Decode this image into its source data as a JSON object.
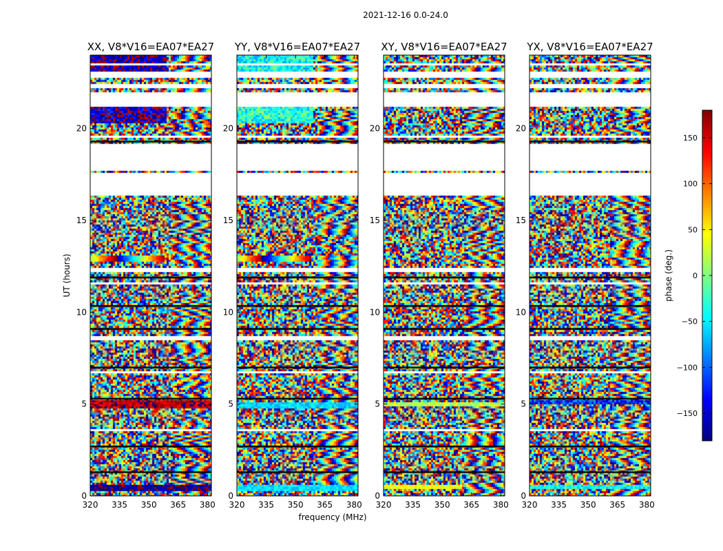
{
  "figure": {
    "suptitle": "2021-12-16 0.0-24.0"
  },
  "chart_data": {
    "type": "heatmap",
    "xlabel": "frequency (MHz)",
    "ylabel": "UT (hours)",
    "xlim": [
      320,
      382
    ],
    "ylim": [
      0,
      24
    ],
    "xticks": [
      "320",
      "335",
      "350",
      "365",
      "380"
    ],
    "xtick_values": [
      320,
      335,
      350,
      365,
      380
    ],
    "yticks": [
      "0",
      "5",
      "10",
      "15",
      "20"
    ],
    "ytick_values": [
      0,
      5,
      10,
      15,
      20
    ],
    "panels": [
      {
        "title": "XX, V8*V16=EA07*EA27",
        "features": [
          {
            "t0": 23.1,
            "t1": 24.0,
            "f0": 320,
            "f1": 359,
            "hue": -165,
            "spread": 40
          },
          {
            "t0": 20.3,
            "t1": 21.2,
            "f0": 320,
            "f1": 359,
            "hue": -160,
            "spread": 50
          },
          {
            "t0": 12.75,
            "t1": 13.1,
            "f0": 320,
            "f1": 358,
            "hue": "wave"
          },
          {
            "t0": 4.75,
            "t1": 5.2,
            "f0": 320,
            "f1": 382,
            "hue": 160,
            "spread": 30
          },
          {
            "t0": 0.25,
            "t1": 0.6,
            "f0": 320,
            "f1": 382,
            "hue": -170,
            "spread": 20
          }
        ]
      },
      {
        "title": "YY, V8*V16=EA07*EA27",
        "features": [
          {
            "t0": 23.1,
            "t1": 24.0,
            "f0": 320,
            "f1": 359,
            "hue": -40,
            "spread": 40
          },
          {
            "t0": 20.3,
            "t1": 21.2,
            "f0": 320,
            "f1": 359,
            "hue": -30,
            "spread": 45
          },
          {
            "t0": 12.75,
            "t1": 13.1,
            "f0": 320,
            "f1": 358,
            "hue": "wave"
          },
          {
            "t0": 4.8,
            "t1": 5.1,
            "f0": 320,
            "f1": 382,
            "hue": -60,
            "spread": 20
          },
          {
            "t0": 0.25,
            "t1": 0.6,
            "f0": 320,
            "f1": 382,
            "hue": -55,
            "spread": 20
          }
        ]
      },
      {
        "title": "XY, V8*V16=EA07*EA27",
        "features": [
          {
            "t0": 4.9,
            "t1": 5.1,
            "f0": 320,
            "f1": 382,
            "hue": 20,
            "spread": 30
          },
          {
            "t0": 0.35,
            "t1": 0.55,
            "f0": 320,
            "f1": 360,
            "hue": 40,
            "spread": 15
          }
        ]
      },
      {
        "title": "YX, V8*V16=EA07*EA27",
        "features": [
          {
            "t0": 4.95,
            "t1": 5.2,
            "f0": 320,
            "f1": 382,
            "hue": -120,
            "spread": 40
          },
          {
            "t0": 0.35,
            "t1": 0.55,
            "f0": 320,
            "f1": 382,
            "hue": -40,
            "spread": 30
          }
        ]
      }
    ],
    "gaps_hours": [
      [
        23.45,
        23.55
      ],
      [
        22.8,
        23.05
      ],
      [
        22.25,
        22.45
      ],
      [
        21.2,
        22.0
      ],
      [
        19.45,
        19.65
      ],
      [
        17.75,
        19.2
      ],
      [
        16.4,
        17.6
      ],
      [
        12.2,
        12.4
      ],
      [
        11.5,
        11.6
      ],
      [
        10.45,
        10.55
      ],
      [
        8.5,
        8.65
      ],
      [
        7.3,
        7.4
      ],
      [
        6.65,
        6.75
      ],
      [
        3.55,
        3.65
      ]
    ],
    "black_lines_hours": [
      19.3,
      11.9,
      10.35,
      9.1,
      7.0,
      5.3,
      2.7,
      1.3
    ],
    "zebra_region_freq_mhz": [
      361,
      382
    ],
    "colorbar": {
      "label": "phase (deg.)",
      "vmin": -180,
      "vmax": 180,
      "ticks": [
        "150",
        "100",
        "50",
        "0",
        "−50",
        "−100",
        "−150"
      ],
      "tick_values": [
        150,
        100,
        50,
        0,
        -50,
        -100,
        -150
      ],
      "colormap": "jet",
      "jet_stops": [
        "#00007f",
        "#0000ff",
        "#007fff",
        "#00ffff",
        "#7fff7f",
        "#ffff00",
        "#ff7f00",
        "#ff0000",
        "#7f0000"
      ]
    }
  }
}
